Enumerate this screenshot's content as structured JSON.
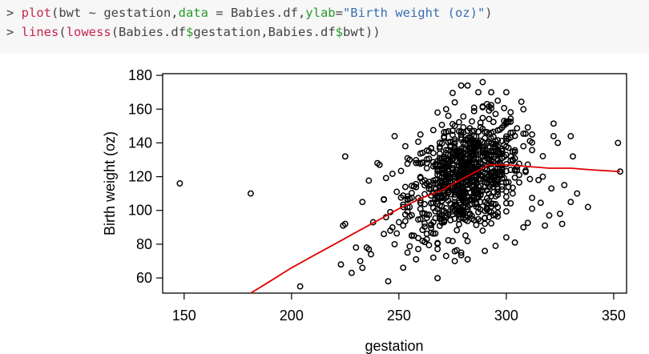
{
  "console": {
    "lines": [
      [
        {
          "text": "> ",
          "kind": "plain"
        },
        {
          "text": "plot",
          "kind": "fn"
        },
        {
          "text": "(bwt ~ gestation,",
          "kind": "plain"
        },
        {
          "text": "data",
          "kind": "arg"
        },
        {
          "text": " = Babies.df,",
          "kind": "plain"
        },
        {
          "text": "ylab",
          "kind": "arg"
        },
        {
          "text": "=",
          "kind": "plain"
        },
        {
          "text": "\"Birth weight (oz)\"",
          "kind": "str"
        },
        {
          "text": ")",
          "kind": "plain"
        }
      ],
      [
        {
          "text": "> ",
          "kind": "plain"
        },
        {
          "text": "lines",
          "kind": "fn"
        },
        {
          "text": "(",
          "kind": "plain"
        },
        {
          "text": "lowess",
          "kind": "fn"
        },
        {
          "text": "(Babies.df",
          "kind": "plain"
        },
        {
          "text": "$",
          "kind": "arg"
        },
        {
          "text": "gestation,Babies.df",
          "kind": "plain"
        },
        {
          "text": "$",
          "kind": "arg"
        },
        {
          "text": "bwt))",
          "kind": "plain"
        }
      ]
    ],
    "colors": {
      "fn": "#c7254e",
      "arg": "#2a9a2a",
      "str": "#3b6fb0",
      "plain": "#444444"
    }
  },
  "chart_data": {
    "type": "scatter",
    "title": "",
    "xlabel": "gestation",
    "ylabel": "Birth weight (oz)",
    "xlim": [
      140,
      356
    ],
    "ylim": [
      51,
      181
    ],
    "xticks": [
      150,
      200,
      250,
      300,
      350
    ],
    "yticks": [
      60,
      80,
      100,
      120,
      140,
      160,
      180
    ],
    "grid": false,
    "marker": "open-circle",
    "point_color": "#000000",
    "line_color": "#e00000",
    "outlier_points": [
      [
        148,
        116
      ],
      [
        181,
        110
      ],
      [
        204,
        55
      ],
      [
        225,
        92
      ],
      [
        224,
        91
      ],
      [
        225,
        132
      ],
      [
        223,
        68
      ],
      [
        228,
        63
      ],
      [
        230,
        78
      ],
      [
        232,
        70
      ],
      [
        233,
        66
      ],
      [
        233,
        105
      ],
      [
        235,
        78
      ],
      [
        236,
        77
      ],
      [
        237,
        74
      ],
      [
        238,
        93
      ],
      [
        240,
        128
      ],
      [
        241,
        127
      ],
      [
        243,
        86
      ],
      [
        244,
        96
      ],
      [
        245,
        58
      ],
      [
        246,
        99
      ],
      [
        246,
        88
      ],
      [
        248,
        144
      ],
      [
        248,
        80
      ],
      [
        249,
        111
      ],
      [
        250,
        93
      ],
      [
        252,
        102
      ],
      [
        253,
        138
      ],
      [
        254,
        75
      ],
      [
        255,
        130
      ],
      [
        257,
        85
      ],
      [
        258,
        71
      ],
      [
        260,
        145
      ],
      [
        261,
        82
      ],
      [
        331,
        132
      ],
      [
        330,
        144
      ],
      [
        330,
        105
      ],
      [
        333,
        110
      ],
      [
        338,
        102
      ],
      [
        352,
        140
      ],
      [
        353,
        123
      ],
      [
        318,
        91
      ],
      [
        320,
        97
      ],
      [
        321,
        113
      ],
      [
        325,
        98
      ],
      [
        326,
        92
      ],
      [
        327,
        115
      ],
      [
        324,
        140
      ],
      [
        322,
        144
      ],
      [
        312,
        101
      ],
      [
        315,
        118
      ],
      [
        317,
        120
      ],
      [
        268,
        158
      ],
      [
        272,
        160
      ],
      [
        276,
        164
      ],
      [
        279,
        174
      ],
      [
        282,
        174
      ],
      [
        287,
        170
      ],
      [
        289,
        176
      ],
      [
        291,
        163
      ],
      [
        293,
        170
      ],
      [
        296,
        165
      ],
      [
        300,
        170
      ],
      [
        266,
        72
      ],
      [
        272,
        73
      ],
      [
        276,
        70
      ],
      [
        279,
        75
      ],
      [
        282,
        71
      ],
      [
        290,
        76
      ],
      [
        295,
        79
      ],
      [
        300,
        84
      ],
      [
        304,
        81
      ],
      [
        308,
        90
      ]
    ],
    "cloud": {
      "n": 900,
      "x_mean": 281,
      "x_sd": 13,
      "y_mean": 120,
      "y_sd": 17,
      "corr": 0.35
    },
    "lowess_line": {
      "x": [
        181,
        190,
        200,
        210,
        220,
        230,
        240,
        250,
        260,
        270,
        280,
        286,
        292,
        300,
        310,
        320,
        330,
        340,
        353
      ],
      "y": [
        50,
        58,
        66,
        73,
        80,
        87,
        94,
        101,
        107,
        112,
        119,
        123,
        127,
        127,
        126,
        125,
        125,
        124,
        123
      ]
    }
  }
}
